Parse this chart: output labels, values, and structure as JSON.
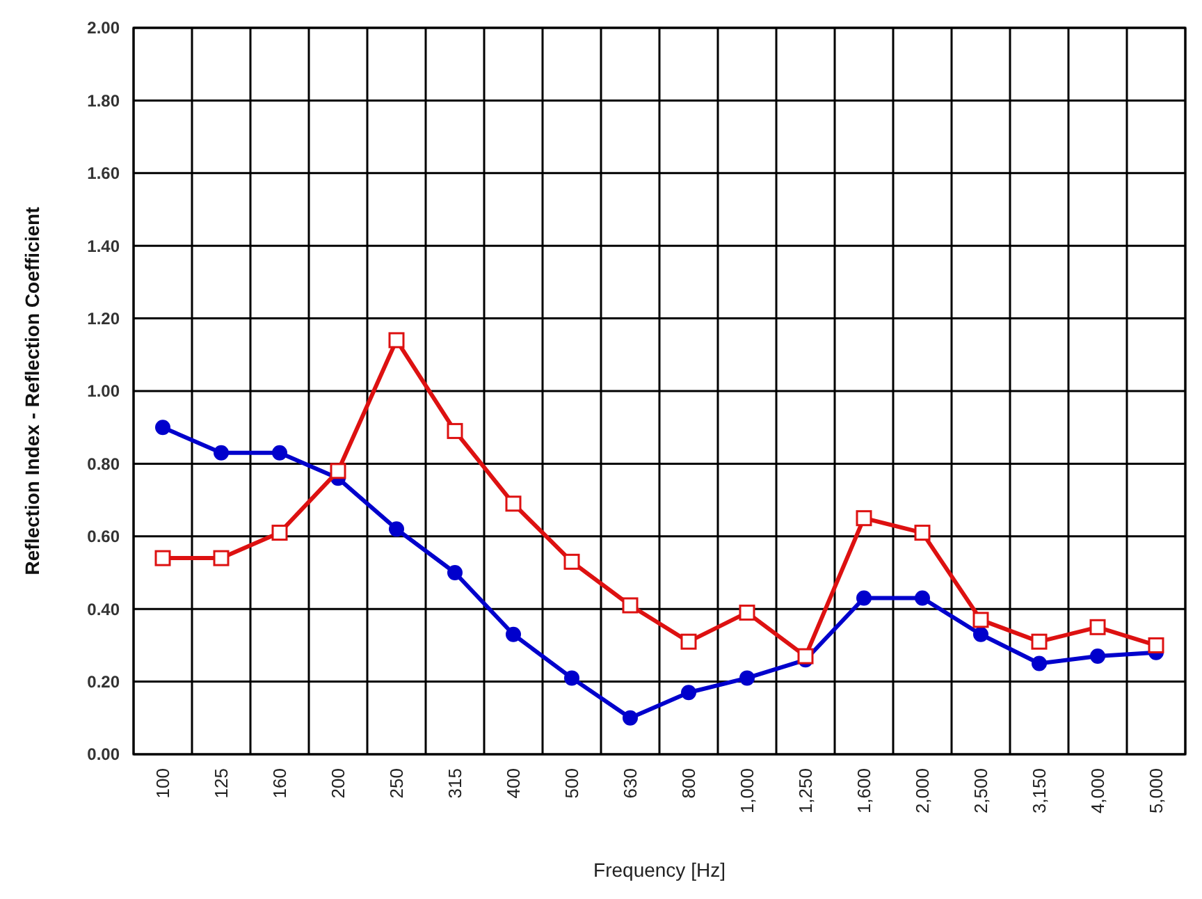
{
  "chart_data": {
    "type": "line",
    "xlabel": "Frequency [Hz]",
    "ylabel": "Reflection Index - Reflection Coefficient",
    "categories": [
      "100",
      "125",
      "160",
      "200",
      "250",
      "315",
      "400",
      "500",
      "630",
      "800",
      "1,000",
      "1,250",
      "1,600",
      "2,000",
      "2,500",
      "3,150",
      "4,000",
      "5,000"
    ],
    "series": [
      {
        "color": "#0000cc",
        "marker": "circle",
        "values": [
          0.9,
          0.83,
          0.83,
          0.76,
          0.62,
          0.5,
          0.33,
          0.21,
          0.1,
          0.17,
          0.21,
          0.26,
          0.43,
          0.43,
          0.33,
          0.25,
          0.27,
          0.28
        ]
      },
      {
        "color": "#dd1111",
        "marker": "square",
        "values": [
          0.54,
          0.54,
          0.61,
          0.78,
          1.14,
          0.89,
          0.69,
          0.53,
          0.41,
          0.31,
          0.39,
          0.27,
          0.65,
          0.61,
          0.37,
          0.31,
          0.35,
          0.3
        ]
      }
    ],
    "ylim": [
      0,
      2
    ],
    "yticks": [
      {
        "value": 0,
        "label": "0.00"
      },
      {
        "value": 0.2,
        "label": "0.20"
      },
      {
        "value": 0.4,
        "label": "0.40"
      },
      {
        "value": 0.6,
        "label": "0.60"
      },
      {
        "value": 0.8,
        "label": "0.80"
      },
      {
        "value": 1,
        "label": "1.00"
      },
      {
        "value": 1.2,
        "label": "1.20"
      },
      {
        "value": 1.4,
        "label": "1.40"
      },
      {
        "value": 1.6,
        "label": "1.60"
      },
      {
        "value": 1.8,
        "label": "1.80"
      },
      {
        "value": 2,
        "label": "2.00"
      }
    ],
    "grid": true
  }
}
